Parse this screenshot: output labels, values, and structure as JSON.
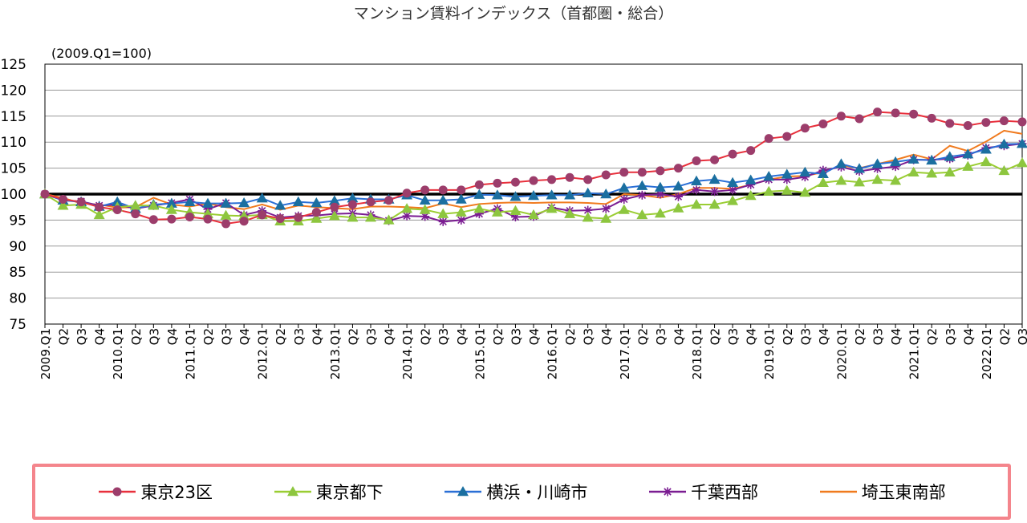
{
  "chart_data": {
    "type": "line",
    "title": "マンション賃料インデックス（首都圏・総合）",
    "ylabel": "",
    "xlabel": "",
    "unit_note": "(2009.Q1=100)",
    "ylim": [
      75,
      125
    ],
    "yticks": [
      75,
      80,
      85,
      90,
      95,
      100,
      105,
      110,
      115,
      120,
      125
    ],
    "baseline": 100,
    "grid": true,
    "legend_position": "bottom",
    "x": [
      "2009.Q1",
      "Q2",
      "Q3",
      "Q4",
      "2010.Q1",
      "Q2",
      "Q3",
      "Q4",
      "2011.Q1",
      "Q2",
      "Q3",
      "Q4",
      "2012.Q1",
      "Q2",
      "Q3",
      "Q4",
      "2013.Q1",
      "Q2",
      "Q3",
      "Q4",
      "2014.Q1",
      "Q2",
      "Q3",
      "Q4",
      "2015.Q1",
      "Q2",
      "Q3",
      "Q4",
      "2016.Q1",
      "Q2",
      "Q3",
      "Q4",
      "2017.Q1",
      "Q2",
      "Q3",
      "Q4",
      "2018.Q1",
      "Q2",
      "Q3",
      "Q4",
      "2019.Q1",
      "Q2",
      "Q3",
      "Q4",
      "2020.Q1",
      "Q2",
      "Q3",
      "Q4",
      "2021.Q1",
      "Q2",
      "Q3",
      "Q4",
      "2022.Q1",
      "Q2",
      "Q3"
    ],
    "series": [
      {
        "name": "東京23区",
        "color": "#e8303c",
        "marker": "circle",
        "marker_color": "#9c3d6b",
        "values": [
          100,
          99,
          98.5,
          97.5,
          97,
          96.2,
          95.1,
          95.2,
          95.6,
          95.2,
          94.3,
          94.8,
          96,
          95.3,
          95.5,
          96.5,
          97.5,
          98,
          98.5,
          98.8,
          100.2,
          100.8,
          100.8,
          100.8,
          101.8,
          102.1,
          102.3,
          102.6,
          102.8,
          103.2,
          102.8,
          103.7,
          104.2,
          104.2,
          104.5,
          105,
          106.4,
          106.6,
          107.7,
          108.4,
          110.7,
          111.1,
          112.7,
          113.5,
          115,
          114.5,
          115.8,
          115.6,
          115.4,
          114.6,
          113.6,
          113.2,
          113.8,
          114.1,
          113.9
        ]
      },
      {
        "name": "東京都下",
        "color": "#9acd32",
        "marker": "triangle",
        "marker_color": "#8dc63f",
        "values": [
          100,
          97.8,
          98,
          96,
          97.5,
          97.8,
          97.8,
          97,
          96.5,
          96.2,
          95.9,
          95.8,
          96,
          94.8,
          94.8,
          95.3,
          95.8,
          95.5,
          95.5,
          95,
          97.2,
          97,
          96.2,
          96.5,
          97.2,
          96.5,
          96.8,
          96,
          97.2,
          96.2,
          95.5,
          95.3,
          97,
          96,
          96.3,
          97.3,
          98,
          98,
          98.7,
          99.7,
          100.5,
          100.7,
          100.3,
          102.2,
          102.6,
          102.3,
          102.8,
          102.6,
          104.2,
          104,
          104.2,
          105.3,
          106.2,
          104.5,
          106
        ]
      },
      {
        "name": "横浜・川崎市",
        "color": "#2a6fd6",
        "marker": "triangle",
        "marker_color": "#1b6fa0",
        "values": [
          100,
          98.8,
          98.5,
          97.6,
          98.5,
          97.2,
          98,
          98.2,
          98.5,
          98.2,
          98.2,
          98.3,
          99.2,
          97.8,
          98.5,
          98.3,
          98.7,
          99.2,
          99,
          99,
          99.8,
          98.8,
          98.8,
          99,
          99.9,
          99.8,
          99.5,
          99.7,
          99.8,
          99.8,
          100.2,
          100,
          101.2,
          101.6,
          101.3,
          101.5,
          102.5,
          102.8,
          102.2,
          102.7,
          103.4,
          103.8,
          104.2,
          103.9,
          105.8,
          104.9,
          105.8,
          106.2,
          106.7,
          106.5,
          107.2,
          107.7,
          108.6,
          109.6,
          109.7
        ]
      },
      {
        "name": "千葉西部",
        "color": "#7b1d92",
        "marker": "star",
        "marker_color": "#7b1d92",
        "values": [
          100,
          98.8,
          98.6,
          97.8,
          98,
          97.2,
          97.8,
          98.3,
          99,
          97.1,
          98.3,
          96,
          96.8,
          95.5,
          95.8,
          95.9,
          96.2,
          96.3,
          96,
          94.9,
          95.8,
          95.7,
          94.7,
          95,
          96.2,
          97.2,
          95.6,
          95.7,
          97.4,
          96.8,
          96.9,
          97.2,
          99,
          99.8,
          100,
          99.5,
          100.8,
          100.5,
          100.8,
          101.8,
          102.8,
          102.8,
          103.3,
          104.6,
          105.2,
          104.4,
          104.9,
          105.3,
          106.6,
          106.6,
          106.8,
          107.5,
          108.9,
          109.3,
          109.7
        ]
      },
      {
        "name": "埼玉東南部",
        "color": "#f07a1e",
        "marker": "none",
        "marker_color": "#f07a1e",
        "values": [
          100,
          99.3,
          98.2,
          98,
          97.4,
          97.5,
          99.3,
          98,
          97.6,
          98.2,
          97.5,
          97.1,
          98,
          97,
          97.8,
          97.5,
          97.3,
          97.1,
          97.6,
          97.6,
          97.5,
          97.3,
          98.2,
          97.5,
          98.1,
          98.3,
          98.4,
          98.3,
          98.4,
          98.4,
          98.3,
          98.1,
          100,
          99.8,
          99.3,
          100,
          101.2,
          101.2,
          101,
          101.8,
          102.8,
          103.4,
          103.5,
          104.2,
          105.5,
          105,
          105.8,
          106.6,
          107.6,
          106.7,
          109.3,
          108.3,
          110.1,
          112.2,
          111.6
        ]
      }
    ]
  }
}
